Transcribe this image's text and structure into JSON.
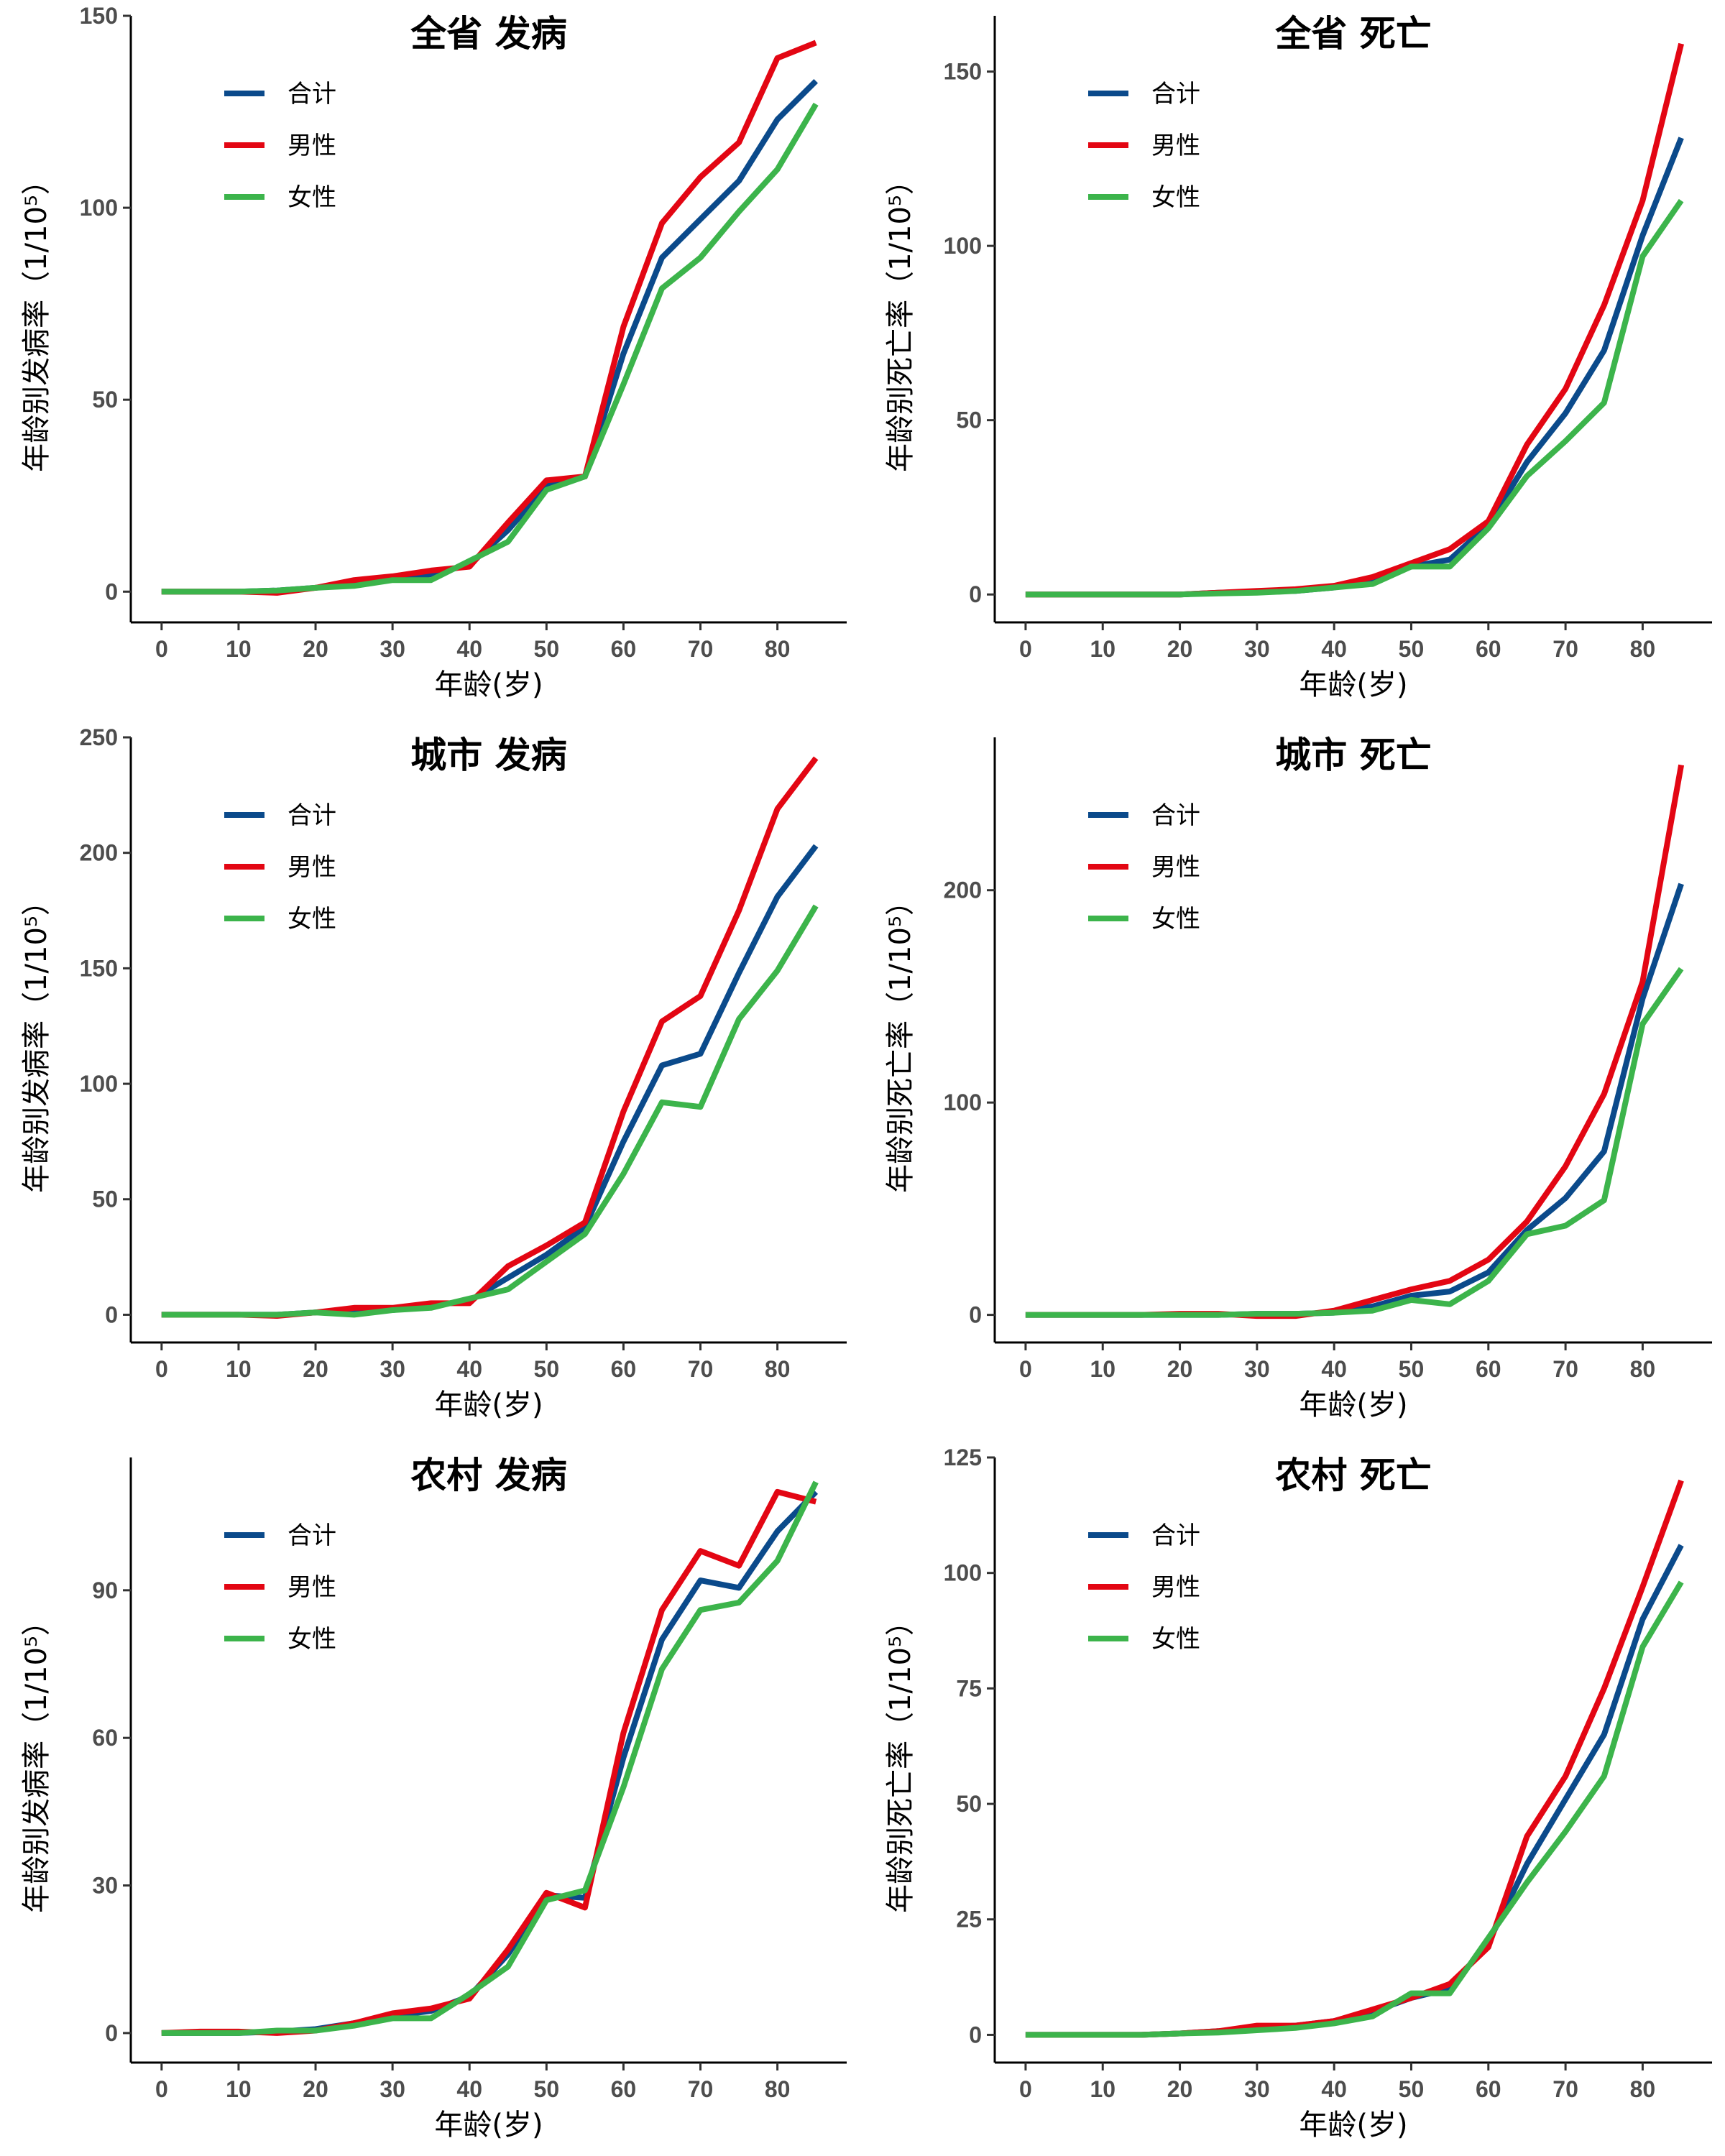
{
  "colors": {
    "合计": "#0b4a8b",
    "男性": "#e30613",
    "女性": "#3cb44b"
  },
  "chart_data": [
    {
      "type": "line",
      "title": "全省 发病",
      "xlabel": "年龄(岁)",
      "ylabel": "年龄别发病率（1/10⁵）",
      "xlim": [
        -4,
        89
      ],
      "ylim": [
        -8,
        150
      ],
      "x_ticks": [
        0,
        10,
        20,
        30,
        40,
        50,
        60,
        70,
        80
      ],
      "y_ticks": [
        0,
        50,
        100,
        150
      ],
      "legend_position": "top-left",
      "x": [
        0,
        5,
        10,
        15,
        20,
        25,
        30,
        35,
        40,
        45,
        50,
        55,
        60,
        65,
        70,
        75,
        80,
        85
      ],
      "series": [
        {
          "name": "合计",
          "values": [
            0,
            0,
            0,
            0.3,
            1,
            2,
            3.5,
            4.5,
            7,
            16,
            27.5,
            30,
            62,
            87,
            97,
            107,
            123,
            133
          ]
        },
        {
          "name": "男性",
          "values": [
            0,
            0,
            0,
            -0.3,
            1,
            3,
            4,
            5.5,
            6.5,
            18,
            29,
            30,
            69,
            96,
            108,
            117,
            139,
            143
          ]
        },
        {
          "name": "女性",
          "values": [
            0,
            0,
            0,
            0.3,
            1,
            1.5,
            3,
            3,
            8,
            13,
            26.5,
            30,
            54,
            79,
            87,
            99,
            110,
            127
          ]
        }
      ]
    },
    {
      "type": "line",
      "title": "全省 死亡",
      "xlabel": "年龄(岁)",
      "ylabel": "年龄别死亡率（1/10⁵）",
      "xlim": [
        -4,
        89
      ],
      "ylim": [
        -8,
        166
      ],
      "x_ticks": [
        0,
        10,
        20,
        30,
        40,
        50,
        60,
        70,
        80
      ],
      "y_ticks": [
        0,
        50,
        100,
        150
      ],
      "legend_position": "top-left",
      "x": [
        0,
        5,
        10,
        15,
        20,
        25,
        30,
        35,
        40,
        45,
        50,
        55,
        60,
        65,
        70,
        75,
        80,
        85
      ],
      "series": [
        {
          "name": "合计",
          "values": [
            0,
            0,
            0,
            0,
            0,
            0.5,
            0.8,
            1,
            2,
            4,
            8,
            10,
            20,
            38,
            52,
            70,
            103,
            131
          ]
        },
        {
          "name": "男性",
          "values": [
            0,
            0,
            0,
            0,
            0,
            0.5,
            1,
            1.5,
            2.5,
            5,
            9,
            13,
            21,
            43,
            59,
            83,
            113,
            158
          ]
        },
        {
          "name": "女性",
          "values": [
            0,
            0,
            0,
            0,
            0,
            0.3,
            0.5,
            1,
            2,
            3,
            8,
            8,
            19,
            34,
            44,
            55,
            97,
            113
          ]
        }
      ]
    },
    {
      "type": "line",
      "title": "城市 发病",
      "xlabel": "年龄(岁)",
      "ylabel": "年龄别发病率（1/10⁵）",
      "xlim": [
        -4,
        89
      ],
      "ylim": [
        -12,
        250
      ],
      "x_ticks": [
        0,
        10,
        20,
        30,
        40,
        50,
        60,
        70,
        80
      ],
      "y_ticks": [
        0,
        50,
        100,
        150,
        200,
        250
      ],
      "legend_position": "top-left",
      "x": [
        0,
        5,
        10,
        15,
        20,
        25,
        30,
        35,
        40,
        45,
        50,
        55,
        60,
        65,
        70,
        75,
        80,
        85
      ],
      "series": [
        {
          "name": "合计",
          "values": [
            0,
            0,
            0,
            0,
            1,
            2,
            2,
            4,
            6,
            16,
            26,
            38,
            75,
            108,
            113,
            148,
            181,
            203
          ]
        },
        {
          "name": "男性",
          "values": [
            0,
            0,
            0,
            -0.5,
            1,
            3,
            3,
            5,
            5,
            21,
            30,
            40,
            88,
            127,
            138,
            175,
            219,
            241
          ]
        },
        {
          "name": "女性",
          "values": [
            0,
            0,
            0,
            0,
            1,
            0,
            2,
            3,
            7,
            11,
            23,
            35,
            61,
            92,
            90,
            128,
            149,
            177
          ]
        }
      ]
    },
    {
      "type": "line",
      "title": "城市 死亡",
      "xlabel": "年龄(岁)",
      "ylabel": "年龄别死亡率（1/10⁵）",
      "xlim": [
        -4,
        89
      ],
      "ylim": [
        -13,
        272
      ],
      "x_ticks": [
        0,
        10,
        20,
        30,
        40,
        50,
        60,
        70,
        80
      ],
      "y_ticks": [
        0,
        100,
        200
      ],
      "legend_position": "top-left",
      "x": [
        0,
        5,
        10,
        15,
        20,
        25,
        30,
        35,
        40,
        45,
        50,
        55,
        60,
        65,
        70,
        75,
        80,
        85
      ],
      "series": [
        {
          "name": "合计",
          "values": [
            0,
            0,
            0,
            0,
            0,
            0,
            0.5,
            0.5,
            1,
            4,
            9,
            11,
            20,
            40,
            55,
            77,
            149,
            203
          ]
        },
        {
          "name": "男性",
          "values": [
            0,
            0,
            0,
            0,
            0.5,
            0.5,
            -0.5,
            -0.5,
            2,
            7,
            12,
            16,
            26,
            44,
            70,
            104,
            157,
            259
          ]
        },
        {
          "name": "女性",
          "values": [
            0,
            0,
            0,
            0,
            0,
            0,
            0.5,
            0.5,
            1,
            2,
            7,
            5,
            16,
            38,
            42,
            54,
            137,
            163
          ]
        }
      ]
    },
    {
      "type": "line",
      "title": "农村 发病",
      "xlabel": "年龄(岁)",
      "ylabel": "年龄别发病率（1/10⁵）",
      "xlim": [
        -4,
        89
      ],
      "ylim": [
        -6,
        117
      ],
      "x_ticks": [
        0,
        10,
        20,
        30,
        40,
        50,
        60,
        70,
        80
      ],
      "y_ticks": [
        0,
        30,
        60,
        90
      ],
      "legend_position": "top-left",
      "x": [
        0,
        5,
        10,
        15,
        20,
        25,
        30,
        35,
        40,
        45,
        50,
        55,
        60,
        65,
        70,
        75,
        80,
        85
      ],
      "series": [
        {
          "name": "合计",
          "values": [
            0,
            0,
            0,
            0.3,
            0.8,
            2,
            3.5,
            4.5,
            7.5,
            16,
            28,
            27.5,
            56,
            80,
            92,
            90.5,
            102,
            110
          ]
        },
        {
          "name": "男性",
          "values": [
            0,
            0.3,
            0.3,
            0,
            0.5,
            2,
            4,
            5,
            7,
            17,
            28.5,
            25.5,
            61,
            86,
            98,
            95,
            110,
            108
          ]
        },
        {
          "name": "女性",
          "values": [
            0,
            0,
            0,
            0.5,
            0.5,
            1.5,
            3,
            3,
            8,
            13.5,
            27,
            29,
            50,
            74,
            86,
            87.5,
            96,
            112
          ]
        }
      ]
    },
    {
      "type": "line",
      "title": "农村 死亡",
      "xlabel": "年龄(岁)",
      "ylabel": "年龄别死亡率（1/10⁵）",
      "xlim": [
        -4,
        89
      ],
      "ylim": [
        -6,
        125
      ],
      "x_ticks": [
        0,
        10,
        20,
        30,
        40,
        50,
        60,
        70,
        80
      ],
      "y_ticks": [
        0,
        25,
        50,
        75,
        100,
        125
      ],
      "legend_position": "top-left",
      "x": [
        0,
        5,
        10,
        15,
        20,
        25,
        30,
        35,
        40,
        45,
        50,
        55,
        60,
        65,
        70,
        75,
        80,
        85
      ],
      "series": [
        {
          "name": "合计",
          "values": [
            0,
            0,
            0,
            0,
            0.3,
            0.8,
            1.5,
            2,
            3,
            5,
            8,
            10,
            20,
            37,
            51,
            65,
            90,
            106
          ]
        },
        {
          "name": "男性",
          "values": [
            0,
            0,
            0,
            0,
            0.3,
            0.8,
            2,
            2,
            3,
            5.5,
            8,
            11,
            19,
            43,
            56,
            75,
            97,
            120
          ]
        },
        {
          "name": "女性",
          "values": [
            0,
            0,
            0,
            0,
            0.3,
            0.5,
            1,
            1.5,
            2.5,
            4,
            9,
            9,
            21,
            33,
            44,
            56,
            84,
            98
          ]
        }
      ]
    }
  ]
}
